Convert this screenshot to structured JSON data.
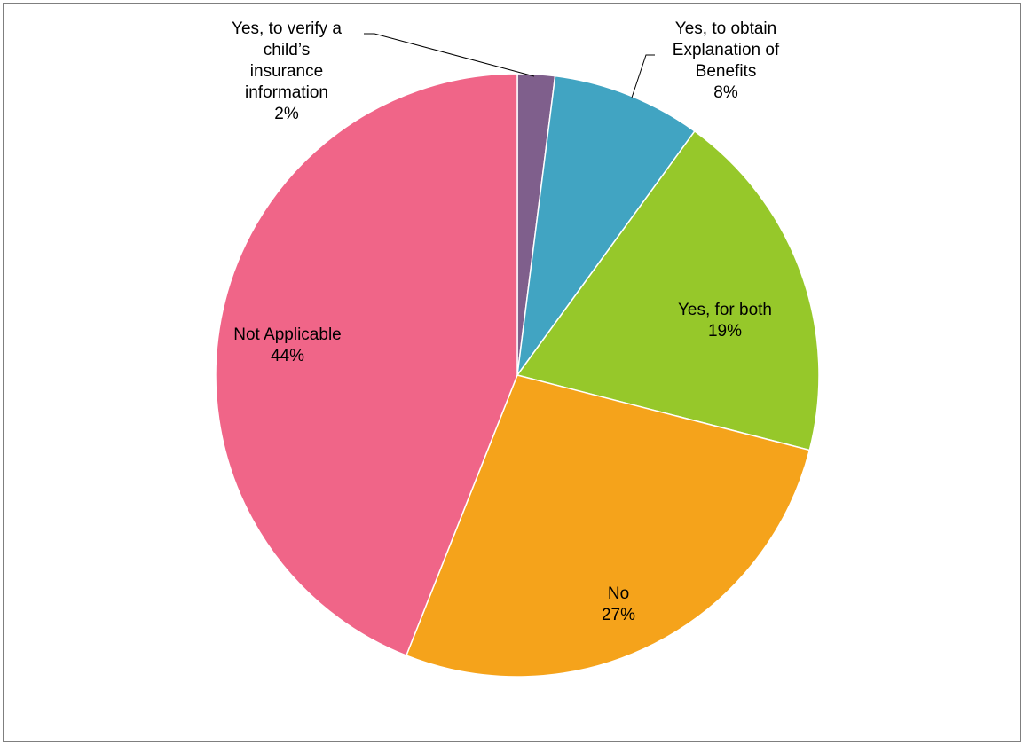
{
  "chart_data": {
    "type": "pie",
    "title": "",
    "start_angle_deg": 0,
    "direction": "clockwise",
    "slices": [
      {
        "label_lines": [
          "Yes, to verify a",
          "child’s",
          "insurance",
          "information"
        ],
        "value": 2,
        "value_label": "2%",
        "color": "#7F5F8C"
      },
      {
        "label_lines": [
          "Yes, to obtain",
          "Explanation of",
          "Benefits"
        ],
        "value": 8,
        "value_label": "8%",
        "color": "#41A4C2"
      },
      {
        "label_lines": [
          "Yes, for both"
        ],
        "value": 19,
        "value_label": "19%",
        "color": "#96C82A"
      },
      {
        "label_lines": [
          "No"
        ],
        "value": 27,
        "value_label": "27%",
        "color": "#F5A31B"
      },
      {
        "label_lines": [
          "Not Applicable"
        ],
        "value": 44,
        "value_label": "44%",
        "color": "#F06588"
      }
    ]
  }
}
